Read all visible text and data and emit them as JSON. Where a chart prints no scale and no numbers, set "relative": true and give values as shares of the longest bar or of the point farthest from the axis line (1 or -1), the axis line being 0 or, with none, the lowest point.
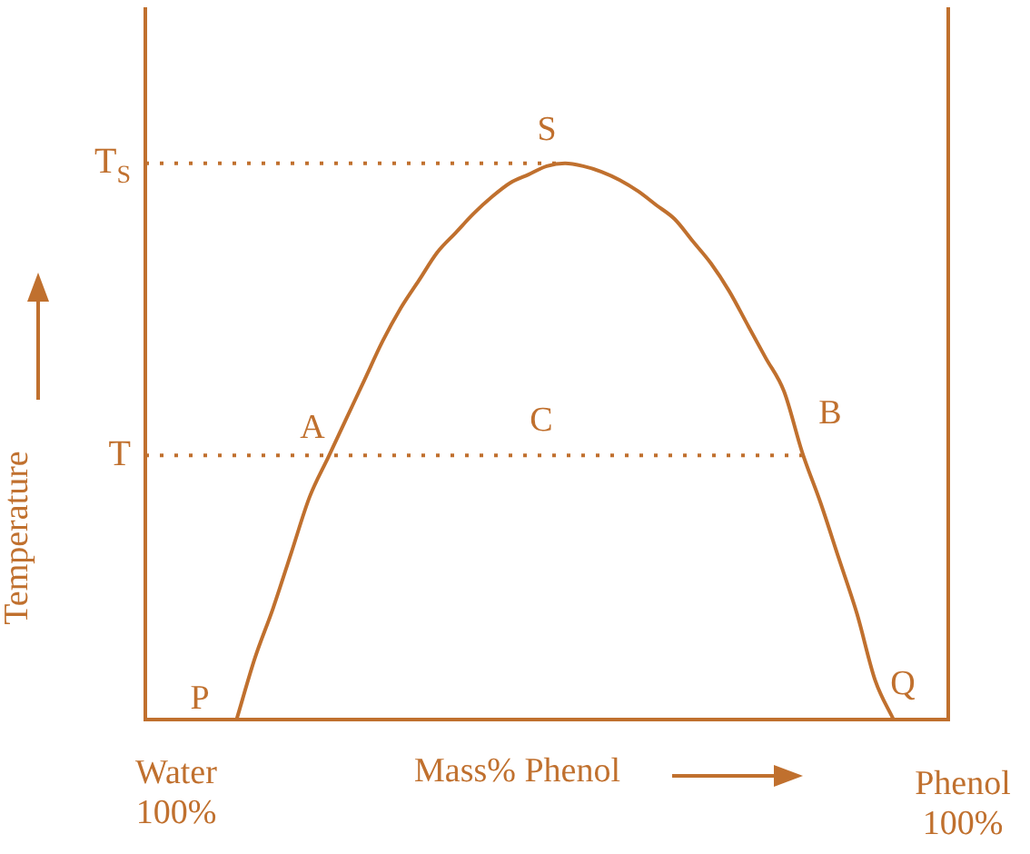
{
  "chart_data": {
    "type": "line",
    "relative": true,
    "xlabel": "Mass% Phenol",
    "ylabel": "Temperature",
    "categories": [
      null,
      null,
      null,
      null,
      null,
      null,
      null,
      null,
      null,
      null,
      null,
      null,
      null,
      null,
      null,
      null,
      null,
      null,
      null,
      null,
      null,
      null,
      null,
      null,
      null,
      null,
      null,
      null,
      null,
      null,
      null,
      null,
      null,
      null,
      null,
      null,
      null,
      null,
      null,
      null,
      null,
      null,
      null,
      null,
      null
    ],
    "series": [
      {
        "color": "#c0702e",
        "values": [
          null,
          null,
          null,
          null,
          null,
          0,
          0.11,
          0.2,
          0.3,
          0.4,
          0.47,
          0.54,
          0.61,
          0.68,
          0.74,
          0.79,
          0.84,
          0.875,
          0.91,
          0.94,
          0.965,
          0.98,
          0.995,
          1,
          0.995,
          0.985,
          0.97,
          0.95,
          0.925,
          0.9,
          0.86,
          0.82,
          0.77,
          0.71,
          0.65,
          0.59,
          0.48,
          0.39,
          0.29,
          0.19,
          0.07,
          0,
          null,
          null,
          null
        ]
      }
    ],
    "ref_lines": [
      {
        "axis": "y",
        "value": 1,
        "label": "T$_{S}$",
        "line_style": "dotted"
      },
      {
        "axis": "y",
        "value": 0.475,
        "label": "T",
        "line_style": "dotted"
      }
    ],
    "annotations": [
      "S",
      "A",
      "B",
      "C",
      "P",
      "Q",
      "Water\n100%",
      "Phenol\n100%"
    ],
    "legend": false,
    "marker": "none",
    "line_style": "solid"
  }
}
